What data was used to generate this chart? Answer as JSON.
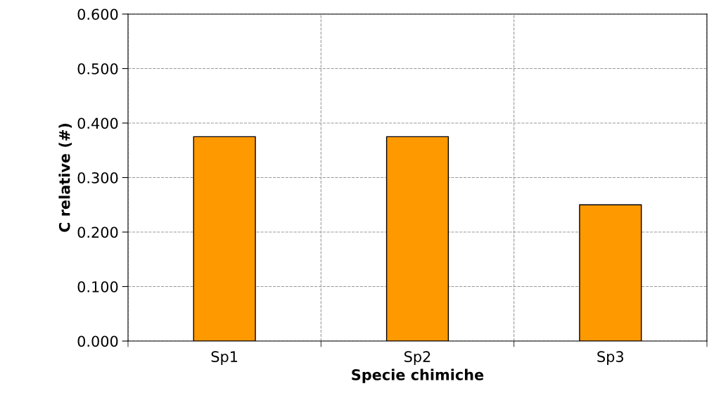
{
  "chart_data": {
    "type": "bar",
    "xlabel": "Specie chimiche",
    "ylabel": "C relative (#)",
    "categories": [
      "Sp1",
      "Sp2",
      "Sp3"
    ],
    "values": [
      0.375,
      0.375,
      0.25
    ],
    "color": "#ff9900",
    "ylim": [
      0,
      0.6
    ],
    "yticks": [
      {
        "value": 0,
        "label": "0.000"
      },
      {
        "value": 0.1,
        "label": "0.100"
      },
      {
        "value": 0.2,
        "label": "0.200"
      },
      {
        "value": 0.3,
        "label": "0.300"
      },
      {
        "value": 0.4,
        "label": "0.400"
      },
      {
        "value": 0.5,
        "label": "0.500"
      },
      {
        "value": 0.6,
        "label": "0.600"
      }
    ],
    "grid": true
  }
}
